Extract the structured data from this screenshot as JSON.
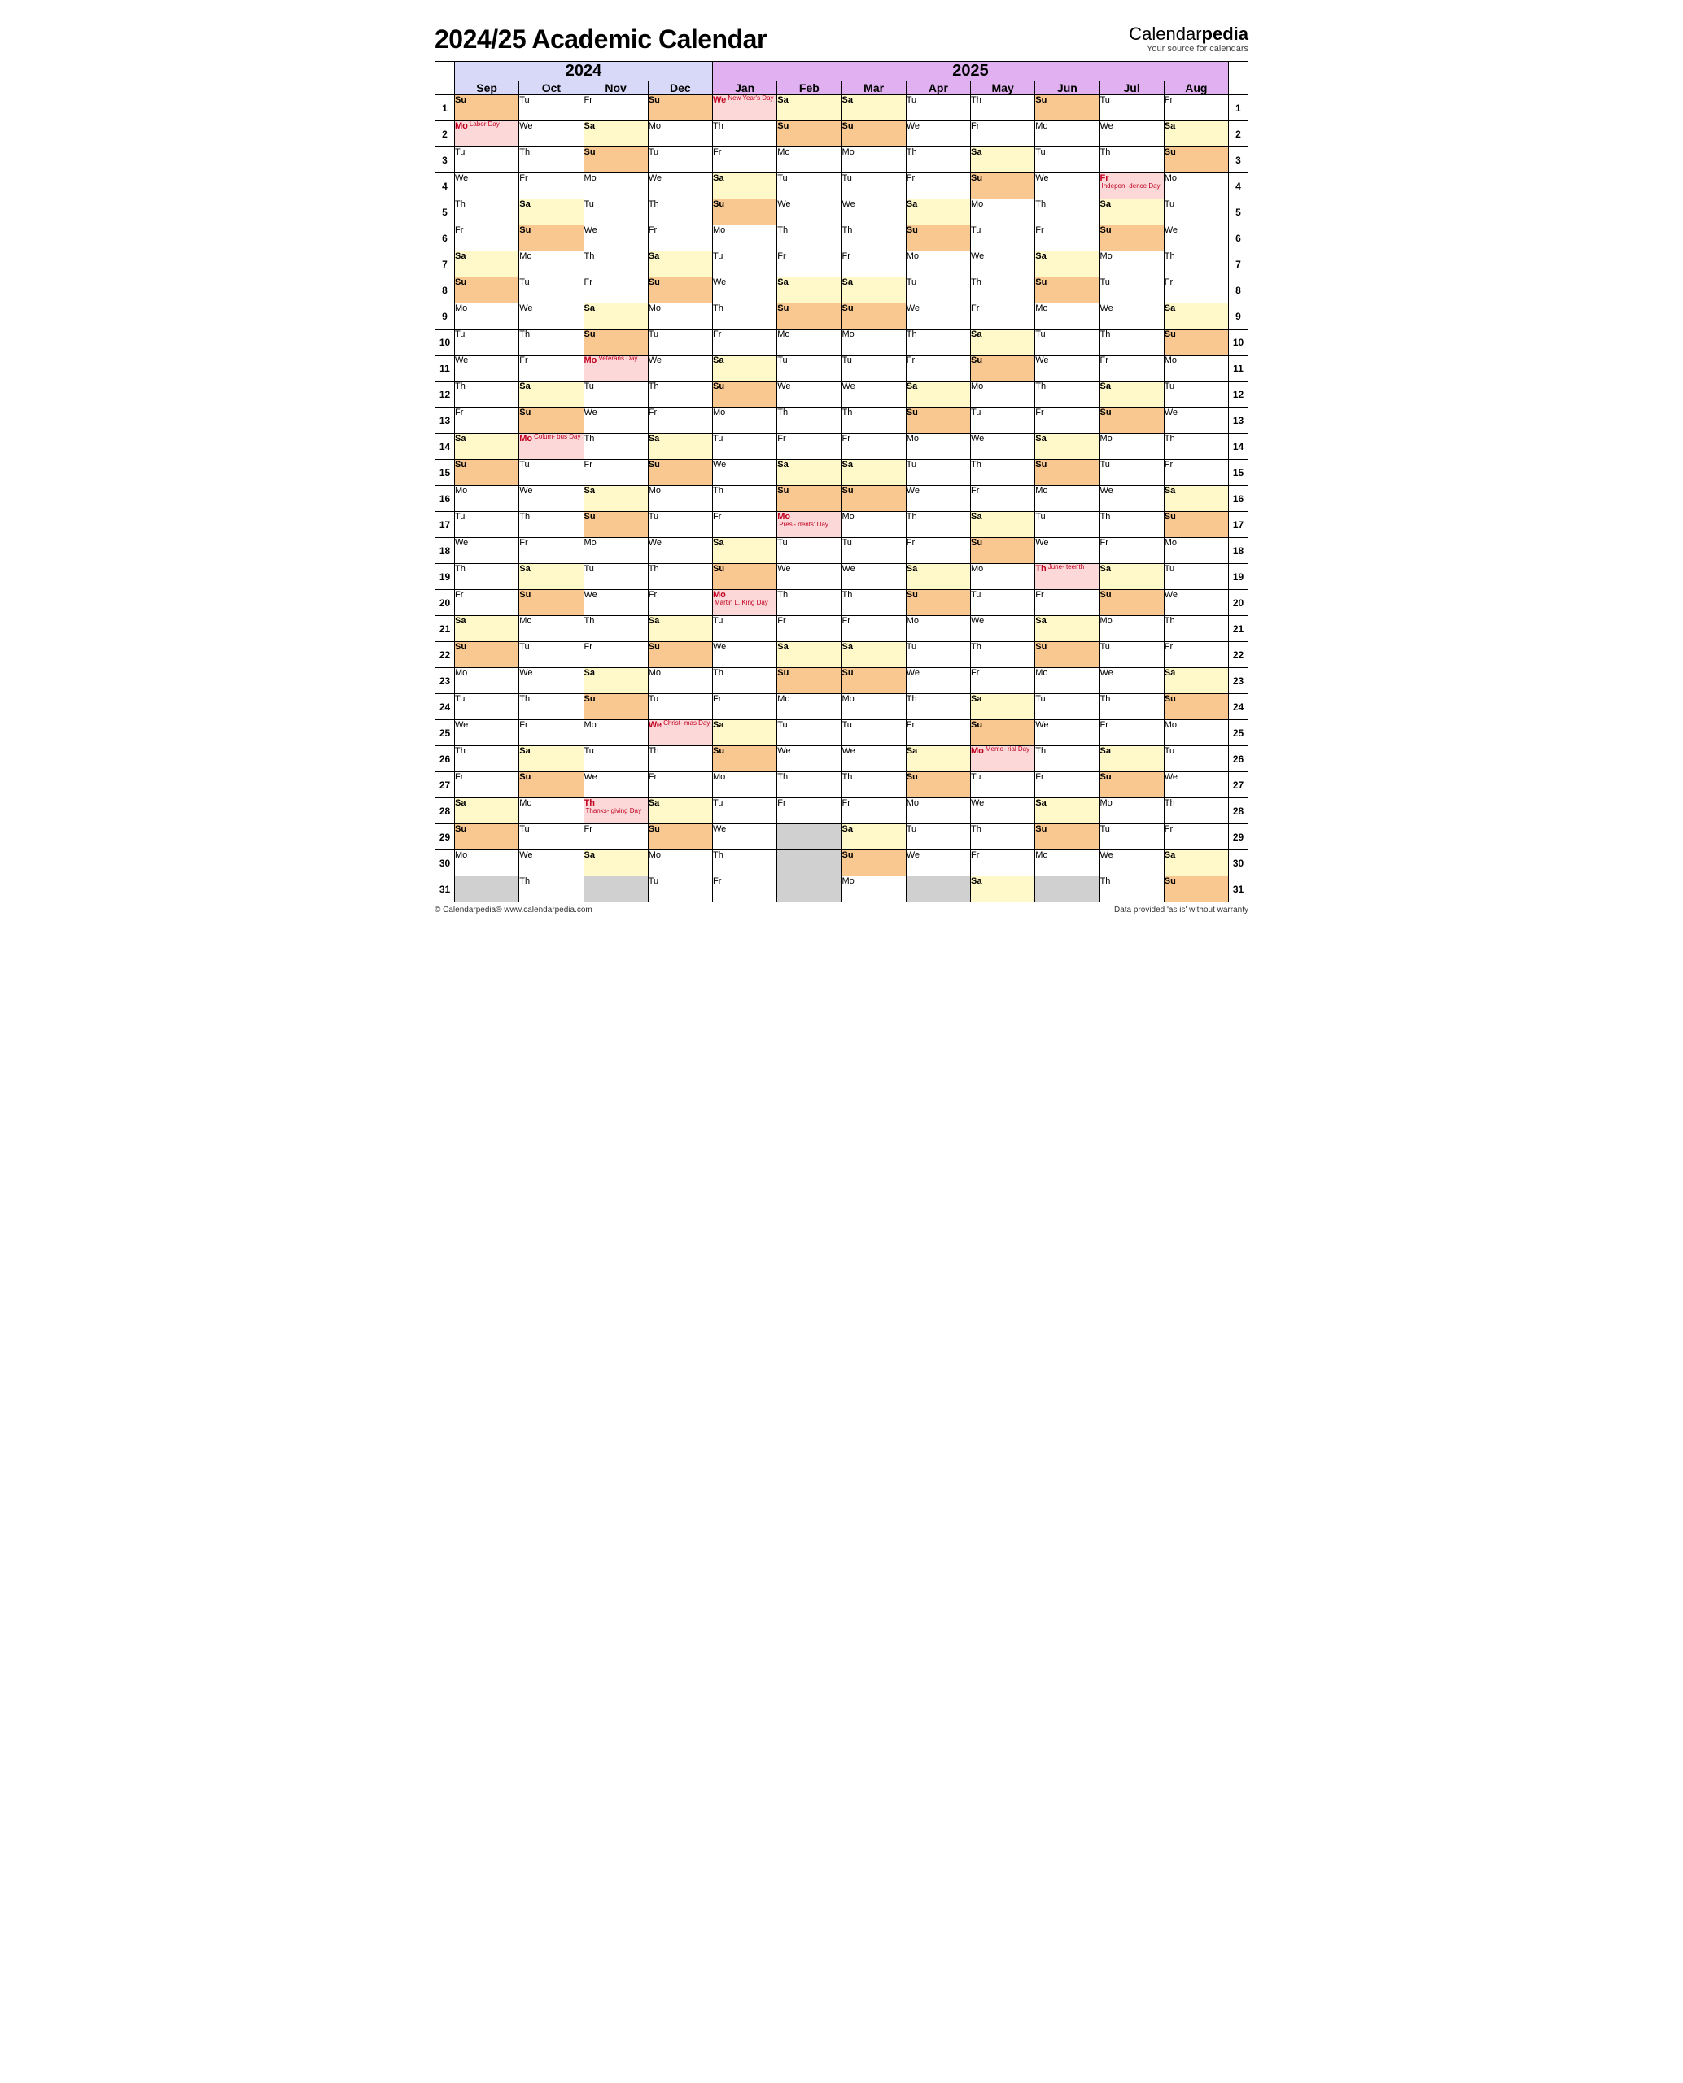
{
  "title": "2024/25 Academic Calendar",
  "brand": {
    "name_a": "Calendar",
    "name_b": "pedia",
    "tag": "Your source for calendars"
  },
  "footer": {
    "left": "© Calendarpedia®   www.calendarpedia.com",
    "right": "Data provided 'as is' without warranty"
  },
  "colors": {
    "y2024": "#d8d8f8",
    "y2025": "#e0b0f0",
    "sat": "#fff8c8",
    "sun": "#f8c890",
    "hol": "#fcd8d8",
    "empty": "#d0d0d0",
    "hol_text": "#c00020",
    "border": "#000000"
  },
  "years": [
    {
      "label": "2024",
      "span": 4,
      "class": "y2024"
    },
    {
      "label": "2025",
      "span": 8,
      "class": "y2025"
    }
  ],
  "month_classes": [
    "y2024",
    "y2024",
    "y2024",
    "y2024",
    "y2025",
    "y2025",
    "y2025",
    "y2025",
    "y2025",
    "y2025",
    "y2025",
    "y2025"
  ],
  "months": [
    "Sep",
    "Oct",
    "Nov",
    "Dec",
    "Jan",
    "Feb",
    "Mar",
    "Apr",
    "May",
    "Jun",
    "Jul",
    "Aug"
  ],
  "rows": [
    [
      {
        "d": "Su",
        "t": "sun"
      },
      {
        "d": "Tu"
      },
      {
        "d": "Fr"
      },
      {
        "d": "Su",
        "t": "sun"
      },
      {
        "d": "We",
        "t": "hol",
        "h": "New Year's Day"
      },
      {
        "d": "Sa",
        "t": "sat"
      },
      {
        "d": "Sa",
        "t": "sat"
      },
      {
        "d": "Tu"
      },
      {
        "d": "Th"
      },
      {
        "d": "Su",
        "t": "sun"
      },
      {
        "d": "Tu"
      },
      {
        "d": "Fr"
      }
    ],
    [
      {
        "d": "Mo",
        "t": "hol",
        "h": "Labor Day"
      },
      {
        "d": "We"
      },
      {
        "d": "Sa",
        "t": "sat"
      },
      {
        "d": "Mo"
      },
      {
        "d": "Th"
      },
      {
        "d": "Su",
        "t": "sun"
      },
      {
        "d": "Su",
        "t": "sun"
      },
      {
        "d": "We"
      },
      {
        "d": "Fr"
      },
      {
        "d": "Mo"
      },
      {
        "d": "We"
      },
      {
        "d": "Sa",
        "t": "sat"
      }
    ],
    [
      {
        "d": "Tu"
      },
      {
        "d": "Th"
      },
      {
        "d": "Su",
        "t": "sun"
      },
      {
        "d": "Tu"
      },
      {
        "d": "Fr"
      },
      {
        "d": "Mo"
      },
      {
        "d": "Mo"
      },
      {
        "d": "Th"
      },
      {
        "d": "Sa",
        "t": "sat"
      },
      {
        "d": "Tu"
      },
      {
        "d": "Th"
      },
      {
        "d": "Su",
        "t": "sun"
      }
    ],
    [
      {
        "d": "We"
      },
      {
        "d": "Fr"
      },
      {
        "d": "Mo"
      },
      {
        "d": "We"
      },
      {
        "d": "Sa",
        "t": "sat"
      },
      {
        "d": "Tu"
      },
      {
        "d": "Tu"
      },
      {
        "d": "Fr"
      },
      {
        "d": "Su",
        "t": "sun"
      },
      {
        "d": "We"
      },
      {
        "d": "Fr",
        "t": "hol",
        "h": "Indepen- dence Day"
      },
      {
        "d": "Mo"
      }
    ],
    [
      {
        "d": "Th"
      },
      {
        "d": "Sa",
        "t": "sat"
      },
      {
        "d": "Tu"
      },
      {
        "d": "Th"
      },
      {
        "d": "Su",
        "t": "sun"
      },
      {
        "d": "We"
      },
      {
        "d": "We"
      },
      {
        "d": "Sa",
        "t": "sat"
      },
      {
        "d": "Mo"
      },
      {
        "d": "Th"
      },
      {
        "d": "Sa",
        "t": "sat"
      },
      {
        "d": "Tu"
      }
    ],
    [
      {
        "d": "Fr"
      },
      {
        "d": "Su",
        "t": "sun"
      },
      {
        "d": "We"
      },
      {
        "d": "Fr"
      },
      {
        "d": "Mo"
      },
      {
        "d": "Th"
      },
      {
        "d": "Th"
      },
      {
        "d": "Su",
        "t": "sun"
      },
      {
        "d": "Tu"
      },
      {
        "d": "Fr"
      },
      {
        "d": "Su",
        "t": "sun"
      },
      {
        "d": "We"
      }
    ],
    [
      {
        "d": "Sa",
        "t": "sat"
      },
      {
        "d": "Mo"
      },
      {
        "d": "Th"
      },
      {
        "d": "Sa",
        "t": "sat"
      },
      {
        "d": "Tu"
      },
      {
        "d": "Fr"
      },
      {
        "d": "Fr"
      },
      {
        "d": "Mo"
      },
      {
        "d": "We"
      },
      {
        "d": "Sa",
        "t": "sat"
      },
      {
        "d": "Mo"
      },
      {
        "d": "Th"
      }
    ],
    [
      {
        "d": "Su",
        "t": "sun"
      },
      {
        "d": "Tu"
      },
      {
        "d": "Fr"
      },
      {
        "d": "Su",
        "t": "sun"
      },
      {
        "d": "We"
      },
      {
        "d": "Sa",
        "t": "sat"
      },
      {
        "d": "Sa",
        "t": "sat"
      },
      {
        "d": "Tu"
      },
      {
        "d": "Th"
      },
      {
        "d": "Su",
        "t": "sun"
      },
      {
        "d": "Tu"
      },
      {
        "d": "Fr"
      }
    ],
    [
      {
        "d": "Mo"
      },
      {
        "d": "We"
      },
      {
        "d": "Sa",
        "t": "sat"
      },
      {
        "d": "Mo"
      },
      {
        "d": "Th"
      },
      {
        "d": "Su",
        "t": "sun"
      },
      {
        "d": "Su",
        "t": "sun"
      },
      {
        "d": "We"
      },
      {
        "d": "Fr"
      },
      {
        "d": "Mo"
      },
      {
        "d": "We"
      },
      {
        "d": "Sa",
        "t": "sat"
      }
    ],
    [
      {
        "d": "Tu"
      },
      {
        "d": "Th"
      },
      {
        "d": "Su",
        "t": "sun"
      },
      {
        "d": "Tu"
      },
      {
        "d": "Fr"
      },
      {
        "d": "Mo"
      },
      {
        "d": "Mo"
      },
      {
        "d": "Th"
      },
      {
        "d": "Sa",
        "t": "sat"
      },
      {
        "d": "Tu"
      },
      {
        "d": "Th"
      },
      {
        "d": "Su",
        "t": "sun"
      }
    ],
    [
      {
        "d": "We"
      },
      {
        "d": "Fr"
      },
      {
        "d": "Mo",
        "t": "hol",
        "h": "Veterans Day"
      },
      {
        "d": "We"
      },
      {
        "d": "Sa",
        "t": "sat"
      },
      {
        "d": "Tu"
      },
      {
        "d": "Tu"
      },
      {
        "d": "Fr"
      },
      {
        "d": "Su",
        "t": "sun"
      },
      {
        "d": "We"
      },
      {
        "d": "Fr"
      },
      {
        "d": "Mo"
      }
    ],
    [
      {
        "d": "Th"
      },
      {
        "d": "Sa",
        "t": "sat"
      },
      {
        "d": "Tu"
      },
      {
        "d": "Th"
      },
      {
        "d": "Su",
        "t": "sun"
      },
      {
        "d": "We"
      },
      {
        "d": "We"
      },
      {
        "d": "Sa",
        "t": "sat"
      },
      {
        "d": "Mo"
      },
      {
        "d": "Th"
      },
      {
        "d": "Sa",
        "t": "sat"
      },
      {
        "d": "Tu"
      }
    ],
    [
      {
        "d": "Fr"
      },
      {
        "d": "Su",
        "t": "sun"
      },
      {
        "d": "We"
      },
      {
        "d": "Fr"
      },
      {
        "d": "Mo"
      },
      {
        "d": "Th"
      },
      {
        "d": "Th"
      },
      {
        "d": "Su",
        "t": "sun"
      },
      {
        "d": "Tu"
      },
      {
        "d": "Fr"
      },
      {
        "d": "Su",
        "t": "sun"
      },
      {
        "d": "We"
      }
    ],
    [
      {
        "d": "Sa",
        "t": "sat"
      },
      {
        "d": "Mo",
        "t": "hol",
        "h": "Colum- bus Day"
      },
      {
        "d": "Th"
      },
      {
        "d": "Sa",
        "t": "sat"
      },
      {
        "d": "Tu"
      },
      {
        "d": "Fr"
      },
      {
        "d": "Fr"
      },
      {
        "d": "Mo"
      },
      {
        "d": "We"
      },
      {
        "d": "Sa",
        "t": "sat"
      },
      {
        "d": "Mo"
      },
      {
        "d": "Th"
      }
    ],
    [
      {
        "d": "Su",
        "t": "sun"
      },
      {
        "d": "Tu"
      },
      {
        "d": "Fr"
      },
      {
        "d": "Su",
        "t": "sun"
      },
      {
        "d": "We"
      },
      {
        "d": "Sa",
        "t": "sat"
      },
      {
        "d": "Sa",
        "t": "sat"
      },
      {
        "d": "Tu"
      },
      {
        "d": "Th"
      },
      {
        "d": "Su",
        "t": "sun"
      },
      {
        "d": "Tu"
      },
      {
        "d": "Fr"
      }
    ],
    [
      {
        "d": "Mo"
      },
      {
        "d": "We"
      },
      {
        "d": "Sa",
        "t": "sat"
      },
      {
        "d": "Mo"
      },
      {
        "d": "Th"
      },
      {
        "d": "Su",
        "t": "sun"
      },
      {
        "d": "Su",
        "t": "sun"
      },
      {
        "d": "We"
      },
      {
        "d": "Fr"
      },
      {
        "d": "Mo"
      },
      {
        "d": "We"
      },
      {
        "d": "Sa",
        "t": "sat"
      }
    ],
    [
      {
        "d": "Tu"
      },
      {
        "d": "Th"
      },
      {
        "d": "Su",
        "t": "sun"
      },
      {
        "d": "Tu"
      },
      {
        "d": "Fr"
      },
      {
        "d": "Mo",
        "t": "hol",
        "h": "Presi- dents' Day"
      },
      {
        "d": "Mo"
      },
      {
        "d": "Th"
      },
      {
        "d": "Sa",
        "t": "sat"
      },
      {
        "d": "Tu"
      },
      {
        "d": "Th"
      },
      {
        "d": "Su",
        "t": "sun"
      }
    ],
    [
      {
        "d": "We"
      },
      {
        "d": "Fr"
      },
      {
        "d": "Mo"
      },
      {
        "d": "We"
      },
      {
        "d": "Sa",
        "t": "sat"
      },
      {
        "d": "Tu"
      },
      {
        "d": "Tu"
      },
      {
        "d": "Fr"
      },
      {
        "d": "Su",
        "t": "sun"
      },
      {
        "d": "We"
      },
      {
        "d": "Fr"
      },
      {
        "d": "Mo"
      }
    ],
    [
      {
        "d": "Th"
      },
      {
        "d": "Sa",
        "t": "sat"
      },
      {
        "d": "Tu"
      },
      {
        "d": "Th"
      },
      {
        "d": "Su",
        "t": "sun"
      },
      {
        "d": "We"
      },
      {
        "d": "We"
      },
      {
        "d": "Sa",
        "t": "sat"
      },
      {
        "d": "Mo"
      },
      {
        "d": "Th",
        "t": "hol",
        "h": "June- teenth"
      },
      {
        "d": "Sa",
        "t": "sat"
      },
      {
        "d": "Tu"
      }
    ],
    [
      {
        "d": "Fr"
      },
      {
        "d": "Su",
        "t": "sun"
      },
      {
        "d": "We"
      },
      {
        "d": "Fr"
      },
      {
        "d": "Mo",
        "t": "hol",
        "h": "Martin L. King Day"
      },
      {
        "d": "Th"
      },
      {
        "d": "Th"
      },
      {
        "d": "Su",
        "t": "sun"
      },
      {
        "d": "Tu"
      },
      {
        "d": "Fr"
      },
      {
        "d": "Su",
        "t": "sun"
      },
      {
        "d": "We"
      }
    ],
    [
      {
        "d": "Sa",
        "t": "sat"
      },
      {
        "d": "Mo"
      },
      {
        "d": "Th"
      },
      {
        "d": "Sa",
        "t": "sat"
      },
      {
        "d": "Tu"
      },
      {
        "d": "Fr"
      },
      {
        "d": "Fr"
      },
      {
        "d": "Mo"
      },
      {
        "d": "We"
      },
      {
        "d": "Sa",
        "t": "sat"
      },
      {
        "d": "Mo"
      },
      {
        "d": "Th"
      }
    ],
    [
      {
        "d": "Su",
        "t": "sun"
      },
      {
        "d": "Tu"
      },
      {
        "d": "Fr"
      },
      {
        "d": "Su",
        "t": "sun"
      },
      {
        "d": "We"
      },
      {
        "d": "Sa",
        "t": "sat"
      },
      {
        "d": "Sa",
        "t": "sat"
      },
      {
        "d": "Tu"
      },
      {
        "d": "Th"
      },
      {
        "d": "Su",
        "t": "sun"
      },
      {
        "d": "Tu"
      },
      {
        "d": "Fr"
      }
    ],
    [
      {
        "d": "Mo"
      },
      {
        "d": "We"
      },
      {
        "d": "Sa",
        "t": "sat"
      },
      {
        "d": "Mo"
      },
      {
        "d": "Th"
      },
      {
        "d": "Su",
        "t": "sun"
      },
      {
        "d": "Su",
        "t": "sun"
      },
      {
        "d": "We"
      },
      {
        "d": "Fr"
      },
      {
        "d": "Mo"
      },
      {
        "d": "We"
      },
      {
        "d": "Sa",
        "t": "sat"
      }
    ],
    [
      {
        "d": "Tu"
      },
      {
        "d": "Th"
      },
      {
        "d": "Su",
        "t": "sun"
      },
      {
        "d": "Tu"
      },
      {
        "d": "Fr"
      },
      {
        "d": "Mo"
      },
      {
        "d": "Mo"
      },
      {
        "d": "Th"
      },
      {
        "d": "Sa",
        "t": "sat"
      },
      {
        "d": "Tu"
      },
      {
        "d": "Th"
      },
      {
        "d": "Su",
        "t": "sun"
      }
    ],
    [
      {
        "d": "We"
      },
      {
        "d": "Fr"
      },
      {
        "d": "Mo"
      },
      {
        "d": "We",
        "t": "hol",
        "h": "Christ- mas Day"
      },
      {
        "d": "Sa",
        "t": "sat"
      },
      {
        "d": "Tu"
      },
      {
        "d": "Tu"
      },
      {
        "d": "Fr"
      },
      {
        "d": "Su",
        "t": "sun"
      },
      {
        "d": "We"
      },
      {
        "d": "Fr"
      },
      {
        "d": "Mo"
      }
    ],
    [
      {
        "d": "Th"
      },
      {
        "d": "Sa",
        "t": "sat"
      },
      {
        "d": "Tu"
      },
      {
        "d": "Th"
      },
      {
        "d": "Su",
        "t": "sun"
      },
      {
        "d": "We"
      },
      {
        "d": "We"
      },
      {
        "d": "Sa",
        "t": "sat"
      },
      {
        "d": "Mo",
        "t": "hol",
        "h": "Memo- rial Day"
      },
      {
        "d": "Th"
      },
      {
        "d": "Sa",
        "t": "sat"
      },
      {
        "d": "Tu"
      }
    ],
    [
      {
        "d": "Fr"
      },
      {
        "d": "Su",
        "t": "sun"
      },
      {
        "d": "We"
      },
      {
        "d": "Fr"
      },
      {
        "d": "Mo"
      },
      {
        "d": "Th"
      },
      {
        "d": "Th"
      },
      {
        "d": "Su",
        "t": "sun"
      },
      {
        "d": "Tu"
      },
      {
        "d": "Fr"
      },
      {
        "d": "Su",
        "t": "sun"
      },
      {
        "d": "We"
      }
    ],
    [
      {
        "d": "Sa",
        "t": "sat"
      },
      {
        "d": "Mo"
      },
      {
        "d": "Th",
        "t": "hol",
        "h": "Thanks- giving Day"
      },
      {
        "d": "Sa",
        "t": "sat"
      },
      {
        "d": "Tu"
      },
      {
        "d": "Fr"
      },
      {
        "d": "Fr"
      },
      {
        "d": "Mo"
      },
      {
        "d": "We"
      },
      {
        "d": "Sa",
        "t": "sat"
      },
      {
        "d": "Mo"
      },
      {
        "d": "Th"
      }
    ],
    [
      {
        "d": "Su",
        "t": "sun"
      },
      {
        "d": "Tu"
      },
      {
        "d": "Fr"
      },
      {
        "d": "Su",
        "t": "sun"
      },
      {
        "d": "We"
      },
      {
        "t": "empty"
      },
      {
        "d": "Sa",
        "t": "sat"
      },
      {
        "d": "Tu"
      },
      {
        "d": "Th"
      },
      {
        "d": "Su",
        "t": "sun"
      },
      {
        "d": "Tu"
      },
      {
        "d": "Fr"
      }
    ],
    [
      {
        "d": "Mo"
      },
      {
        "d": "We"
      },
      {
        "d": "Sa",
        "t": "sat"
      },
      {
        "d": "Mo"
      },
      {
        "d": "Th"
      },
      {
        "t": "empty"
      },
      {
        "d": "Su",
        "t": "sun"
      },
      {
        "d": "We"
      },
      {
        "d": "Fr"
      },
      {
        "d": "Mo"
      },
      {
        "d": "We"
      },
      {
        "d": "Sa",
        "t": "sat"
      }
    ],
    [
      {
        "t": "empty"
      },
      {
        "d": "Th"
      },
      {
        "t": "empty"
      },
      {
        "d": "Tu"
      },
      {
        "d": "Fr"
      },
      {
        "t": "empty"
      },
      {
        "d": "Mo"
      },
      {
        "t": "empty"
      },
      {
        "d": "Sa",
        "t": "sat"
      },
      {
        "t": "empty"
      },
      {
        "d": "Th"
      },
      {
        "d": "Su",
        "t": "sun"
      }
    ]
  ]
}
